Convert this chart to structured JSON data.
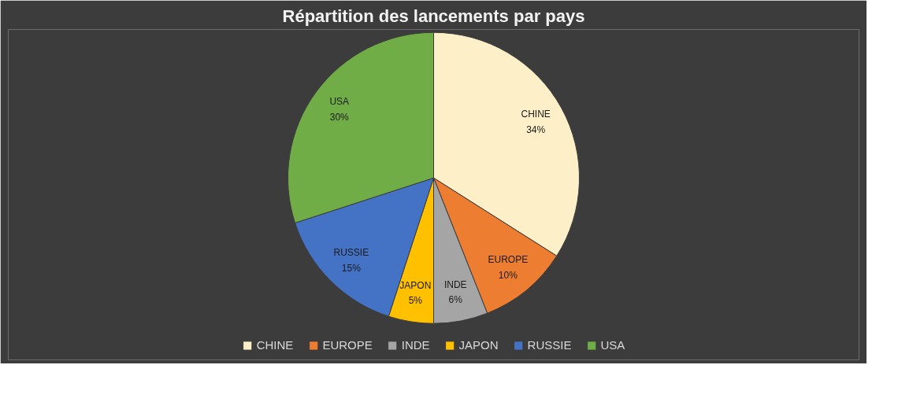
{
  "chart_data": {
    "type": "pie",
    "title": "Répartition des lancements par pays",
    "categories": [
      "CHINE",
      "EUROPE",
      "INDE",
      "JAPON",
      "RUSSIE",
      "USA"
    ],
    "values": [
      34,
      10,
      6,
      5,
      15,
      30
    ],
    "colors": [
      "#fdf0c8",
      "#ed7d31",
      "#a5a5a5",
      "#ffc000",
      "#4472c4",
      "#70ad47"
    ],
    "value_labels": [
      "34%",
      "10%",
      "6%",
      "5%",
      "15%",
      "30%"
    ],
    "legend": "bottom"
  }
}
